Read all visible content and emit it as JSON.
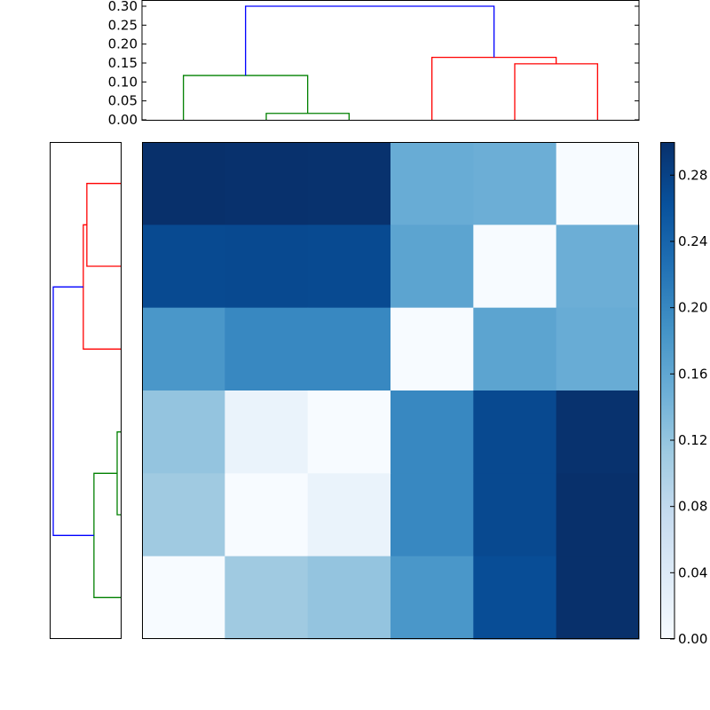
{
  "chart_data": [
    {
      "type": "dendrogram",
      "name": "top-dendrogram",
      "orientation": "top",
      "ylim": [
        0,
        0.315
      ],
      "yticks": [
        0.0,
        0.05,
        0.1,
        0.15,
        0.2,
        0.25,
        0.3
      ],
      "ytick_labels": [
        "0.00",
        "0.05",
        "0.10",
        "0.15",
        "0.20",
        "0.25",
        "0.30"
      ],
      "leaf_count": 6,
      "links": [
        {
          "color": "#008000",
          "left": 1,
          "right": 2,
          "height": 0.017
        },
        {
          "color": "#008000",
          "left": 0,
          "right": 1.5,
          "height": 0.117
        },
        {
          "color": "#ff0000",
          "left": 4,
          "right": 5,
          "height": 0.148
        },
        {
          "color": "#ff0000",
          "left": 3,
          "right": 4.5,
          "height": 0.165
        },
        {
          "color": "#0000ff",
          "left": 0.75,
          "right": 3.75,
          "height": 0.3
        }
      ]
    },
    {
      "type": "dendrogram",
      "name": "left-dendrogram",
      "orientation": "left",
      "xlim": [
        0.3,
        0
      ],
      "leaf_count": 6,
      "links": [
        {
          "color": "#ff0000",
          "left": 0,
          "right": 1,
          "height": 0.143
        },
        {
          "color": "#ff0000",
          "left": 0.5,
          "right": 2,
          "height": 0.158
        },
        {
          "color": "#008000",
          "left": 3,
          "right": 4,
          "height": 0.015
        },
        {
          "color": "#008000",
          "left": 3.5,
          "right": 5,
          "height": 0.113
        },
        {
          "color": "#0000ff",
          "left": 1.25,
          "right": 4.25,
          "height": 0.285
        }
      ]
    },
    {
      "type": "heatmap",
      "name": "distance-matrix",
      "colormap": "Blues",
      "vmin": 0.0,
      "vmax": 0.3,
      "rows": 6,
      "cols": 6,
      "values": [
        [
          0.3,
          0.3,
          0.3,
          0.14,
          0.13,
          0.0
        ],
        [
          0.25,
          0.25,
          0.25,
          0.16,
          0.0,
          0.13
        ],
        [
          0.17,
          0.19,
          0.19,
          0.0,
          0.16,
          0.14
        ],
        [
          0.1,
          0.02,
          0.0,
          0.19,
          0.25,
          0.3
        ],
        [
          0.09,
          0.0,
          0.02,
          0.19,
          0.25,
          0.3
        ],
        [
          0.0,
          0.09,
          0.1,
          0.17,
          0.25,
          0.3
        ]
      ],
      "colors": [
        [
          "#08306b",
          "#08316d",
          "#08326e",
          "#68acd5",
          "#6caed6",
          "#f7fbff"
        ],
        [
          "#084a91",
          "#084990",
          "#084a91",
          "#5ca4d0",
          "#f7fbff",
          "#6caed6"
        ],
        [
          "#4a97c9",
          "#3888c1",
          "#3888c1",
          "#f7fbff",
          "#5ca4d0",
          "#68acd5"
        ],
        [
          "#94c4df",
          "#eaf3fb",
          "#f7fbff",
          "#3888c1",
          "#084990",
          "#08326e"
        ],
        [
          "#a0cae1",
          "#f7fbff",
          "#eaf3fb",
          "#3888c1",
          "#084990",
          "#08306b"
        ],
        [
          "#f7fbff",
          "#a0cae1",
          "#94c4df",
          "#4a97c9",
          "#084d96",
          "#08306b"
        ]
      ],
      "xticks": [],
      "yticks": []
    },
    {
      "type": "colorbar",
      "name": "colorbar",
      "colormap": "Blues",
      "range": [
        0.0,
        0.3
      ],
      "ticks": [
        0.0,
        0.04,
        0.08,
        0.12,
        0.16,
        0.2,
        0.24,
        0.28
      ],
      "tick_labels": [
        "0.00",
        "0.04",
        "0.08",
        "0.12",
        "0.16",
        "0.20",
        "0.24",
        "0.28"
      ]
    }
  ]
}
